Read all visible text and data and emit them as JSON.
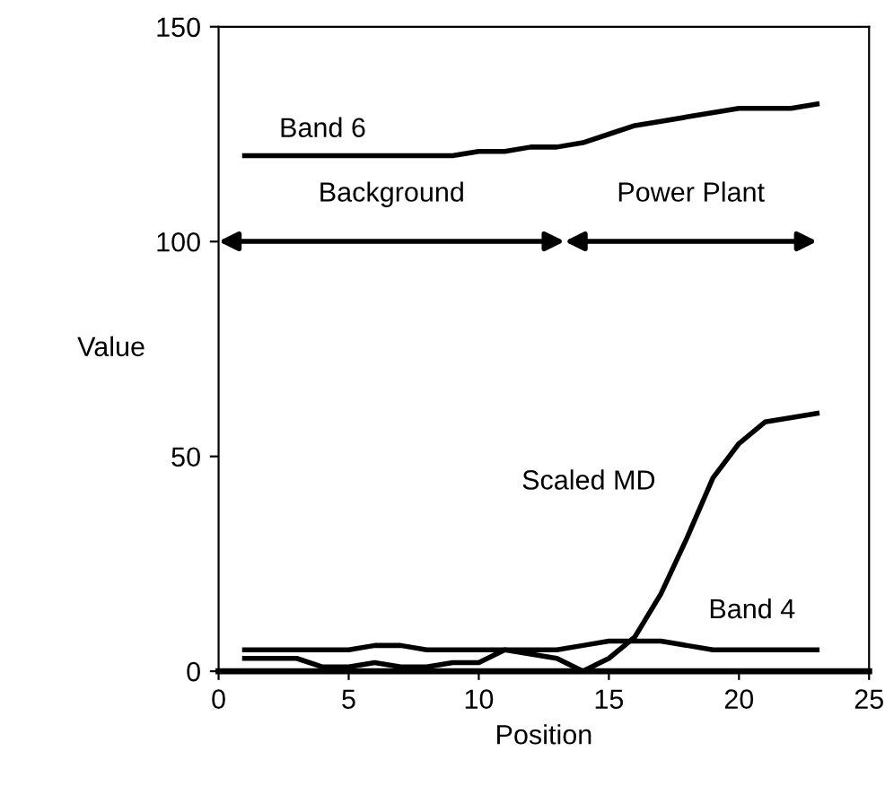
{
  "chart_data": {
    "type": "line",
    "xlabel": "Position",
    "ylabel": "Value",
    "x": [
      1,
      2,
      3,
      4,
      5,
      6,
      7,
      8,
      9,
      10,
      11,
      12,
      13,
      14,
      15,
      16,
      17,
      18,
      19,
      20,
      21,
      22,
      23
    ],
    "series": [
      {
        "name": "Band 6",
        "color": "#000000",
        "values": [
          120,
          120,
          120,
          120,
          120,
          120,
          120,
          120,
          120,
          121,
          121,
          122,
          122,
          123,
          125,
          127,
          128,
          129,
          130,
          131,
          131,
          131,
          132
        ]
      },
      {
        "name": "Scaled MD",
        "color": "#000000",
        "values": [
          3,
          3,
          3,
          1,
          1,
          2,
          1,
          1,
          2,
          2,
          5,
          4,
          3,
          0,
          3,
          8,
          18,
          31,
          45,
          53,
          58,
          59,
          60
        ]
      },
      {
        "name": "Band 4",
        "color": "#000000",
        "values": [
          5,
          5,
          5,
          5,
          5,
          6,
          6,
          5,
          5,
          5,
          5,
          5,
          5,
          6,
          7,
          7,
          7,
          6,
          5,
          5,
          5,
          5,
          5
        ]
      }
    ],
    "annotations": [
      "Background",
      "Power Plant"
    ],
    "xlim": [
      0,
      25
    ],
    "ylim": [
      0,
      150
    ],
    "xticks": [
      0,
      5,
      10,
      15,
      20,
      25
    ],
    "yticks": [
      0,
      50,
      100,
      150
    ],
    "grid": false,
    "legend": false,
    "marker": "none",
    "line_style": "solid"
  }
}
